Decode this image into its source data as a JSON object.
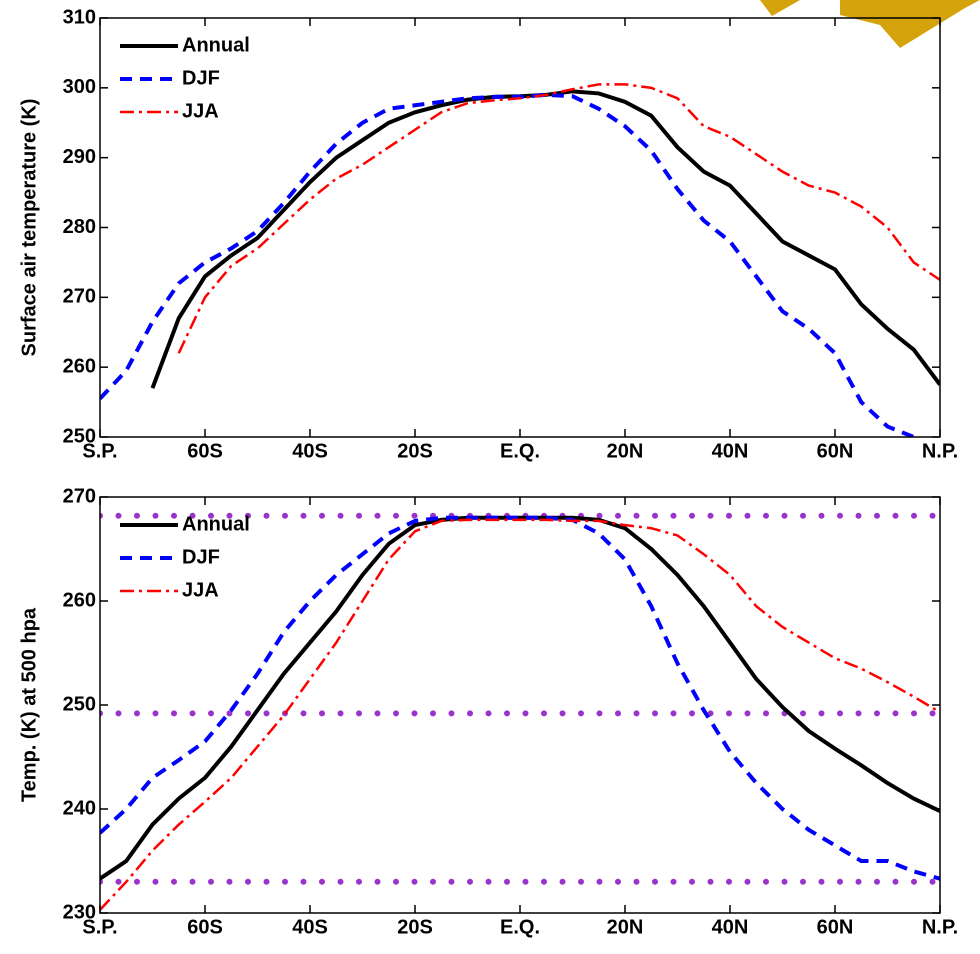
{
  "chart_data": [
    {
      "type": "line",
      "ylabel": "Surface air temperature (K)",
      "x": [
        0,
        0.25,
        0.5,
        0.75,
        1,
        1.25,
        1.5,
        1.75,
        2,
        2.25,
        2.5,
        2.75,
        3,
        3.25,
        3.5,
        3.75,
        4,
        4.25,
        4.5,
        4.75,
        5,
        5.25,
        5.5,
        5.75,
        6,
        6.25,
        6.5,
        6.75,
        7,
        7.25,
        7.5,
        7.75,
        8
      ],
      "series": [
        {
          "name": "Annual",
          "color": "#000000",
          "style": "solid",
          "values": [
            null,
            null,
            257,
            267,
            273,
            276,
            278.5,
            282.5,
            286.5,
            290,
            292.5,
            295,
            296.5,
            297.5,
            298.3,
            298.7,
            298.8,
            299,
            299.5,
            299.2,
            298,
            296,
            291.5,
            288,
            286,
            282,
            278,
            276,
            274,
            269,
            265.5,
            262.5,
            257.5
          ]
        },
        {
          "name": "DJF",
          "color": "#0000ff",
          "style": "dashed",
          "values": [
            255.5,
            259.5,
            266.5,
            272,
            275,
            277,
            279.5,
            283.5,
            288,
            292,
            295,
            297,
            297.5,
            298,
            298.5,
            298.7,
            298.7,
            299,
            298.8,
            297,
            294.5,
            291,
            285.5,
            281,
            278,
            273,
            268,
            265.5,
            262,
            255,
            251.5,
            250,
            null
          ]
        },
        {
          "name": "JJA",
          "color": "#ff0000",
          "style": "dashdot",
          "values": [
            null,
            null,
            null,
            262,
            270,
            274.5,
            277,
            280.5,
            284,
            287,
            289,
            291.5,
            294,
            296.5,
            297.8,
            298.2,
            298.5,
            299,
            299.8,
            300.5,
            300.5,
            300,
            298.5,
            294.5,
            293,
            290.5,
            288,
            286,
            285,
            283,
            280,
            275,
            272.5
          ]
        }
      ],
      "xlim": [
        0,
        8
      ],
      "xticks": [
        {
          "value": 0,
          "label": "S.P."
        },
        {
          "value": 1,
          "label": "60S"
        },
        {
          "value": 2,
          "label": "40S"
        },
        {
          "value": 3,
          "label": "20S"
        },
        {
          "value": 4,
          "label": "E.Q."
        },
        {
          "value": 5,
          "label": "20N"
        },
        {
          "value": 6,
          "label": "40N"
        },
        {
          "value": 7,
          "label": "60N"
        },
        {
          "value": 8,
          "label": "N.P."
        }
      ],
      "ylim": [
        250,
        310
      ],
      "yticks": [
        250,
        260,
        270,
        280,
        290,
        300,
        310
      ],
      "legend": "upper left"
    },
    {
      "type": "line",
      "ylabel": "Temp. (K) at 500 hpa",
      "x": [
        0,
        0.25,
        0.5,
        0.75,
        1,
        1.25,
        1.5,
        1.75,
        2,
        2.25,
        2.5,
        2.75,
        3,
        3.25,
        3.5,
        3.75,
        4,
        4.25,
        4.5,
        4.75,
        5,
        5.25,
        5.5,
        5.75,
        6,
        6.25,
        6.5,
        6.75,
        7,
        7.25,
        7.5,
        7.75,
        8
      ],
      "series": [
        {
          "name": "Annual",
          "color": "#000000",
          "style": "solid",
          "values": [
            233.3,
            235,
            238.5,
            241,
            243,
            246,
            249.5,
            253,
            256,
            259,
            262.5,
            265.5,
            267.3,
            267.8,
            268,
            268,
            268,
            268,
            268,
            267.8,
            267,
            265,
            262.5,
            259.5,
            256,
            252.5,
            249.8,
            247.5,
            245.8,
            244.2,
            242.5,
            241,
            239.8
          ]
        },
        {
          "name": "DJF",
          "color": "#0000ff",
          "style": "dashed",
          "values": [
            237.7,
            240,
            243,
            244.7,
            246.5,
            249.5,
            253,
            257,
            260,
            262.5,
            264.5,
            266.5,
            267.7,
            268,
            268,
            268,
            268,
            268,
            267.8,
            266.5,
            264,
            259.5,
            254,
            249.5,
            245.5,
            242.5,
            240,
            238,
            236.5,
            235,
            235,
            234,
            233.3
          ]
        },
        {
          "name": "JJA",
          "color": "#ff0000",
          "style": "dashdot",
          "values": [
            230.3,
            233,
            236,
            238.5,
            240.7,
            243,
            246,
            249,
            252.5,
            256,
            260,
            264,
            266.7,
            267.7,
            267.8,
            267.8,
            267.8,
            267.8,
            267.7,
            267.7,
            267.3,
            267,
            266.3,
            264.5,
            262.5,
            259.5,
            257.5,
            256,
            254.5,
            253.5,
            252.2,
            250.8,
            249.3
          ]
        }
      ],
      "hlines": {
        "color": "#9933cc",
        "values": [
          268.2,
          249.2,
          233
        ]
      },
      "xlim": [
        0,
        8
      ],
      "xticks": [
        {
          "value": 0,
          "label": "S.P."
        },
        {
          "value": 1,
          "label": "60S"
        },
        {
          "value": 2,
          "label": "40S"
        },
        {
          "value": 3,
          "label": "20S"
        },
        {
          "value": 4,
          "label": "E.Q."
        },
        {
          "value": 5,
          "label": "20N"
        },
        {
          "value": 6,
          "label": "40N"
        },
        {
          "value": 7,
          "label": "60N"
        },
        {
          "value": 8,
          "label": "N.P."
        }
      ],
      "ylim": [
        230,
        270
      ],
      "yticks": [
        230,
        240,
        250,
        260,
        270
      ],
      "legend": "upper left"
    }
  ]
}
